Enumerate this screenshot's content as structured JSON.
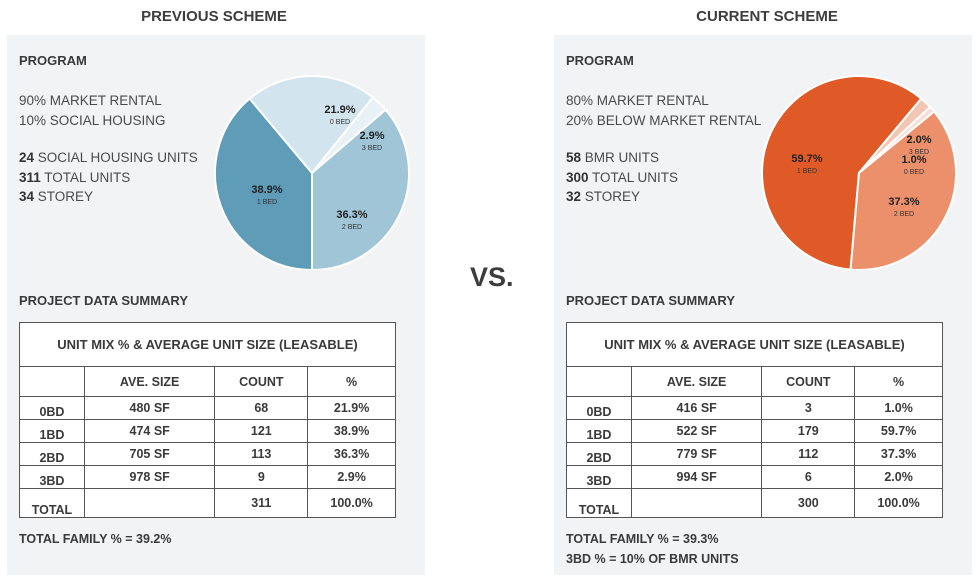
{
  "vs_label": "VS.",
  "previous": {
    "title": "PREVIOUS SCHEME",
    "program_heading": "PROGRAM",
    "program_lines": [
      "90% MARKET RENTAL",
      "10% SOCIAL HOUSING"
    ],
    "stats": [
      {
        "num": "24",
        "label": " SOCIAL HOUSING UNITS"
      },
      {
        "num": "311",
        "label": " TOTAL UNITS"
      },
      {
        "num": "34",
        "label": " STOREY"
      }
    ],
    "summary_heading": "PROJECT DATA SUMMARY",
    "table": {
      "caption": "UNIT MIX % & AVERAGE UNIT SIZE (LEASABLE)",
      "columns": [
        "",
        "AVE. SIZE",
        "COUNT",
        "%"
      ],
      "rows": [
        [
          "0BD",
          "480 SF",
          "68",
          "21.9%"
        ],
        [
          "1BD",
          "474 SF",
          "121",
          "38.9%"
        ],
        [
          "2BD",
          "705 SF",
          "113",
          "36.3%"
        ],
        [
          "3BD",
          "978 SF",
          "9",
          "2.9%"
        ],
        [
          "TOTAL",
          "",
          "311",
          "100.0%"
        ]
      ]
    },
    "footnotes": [
      "TOTAL FAMILY % = 39.2%"
    ]
  },
  "current": {
    "title": "CURRENT SCHEME",
    "program_heading": "PROGRAM",
    "program_lines": [
      "80% MARKET RENTAL",
      "20% BELOW MARKET RENTAL"
    ],
    "stats": [
      {
        "num": "58",
        "label": " BMR UNITS"
      },
      {
        "num": "300",
        "label": " TOTAL UNITS"
      },
      {
        "num": "32",
        "label": " STOREY"
      }
    ],
    "summary_heading": "PROJECT DATA SUMMARY",
    "table": {
      "caption": "UNIT MIX % & AVERAGE UNIT SIZE (LEASABLE)",
      "columns": [
        "",
        "AVE. SIZE",
        "COUNT",
        "%"
      ],
      "rows": [
        [
          "0BD",
          "416 SF",
          "3",
          "1.0%"
        ],
        [
          "1BD",
          "522 SF",
          "179",
          "59.7%"
        ],
        [
          "2BD",
          "779 SF",
          "112",
          "37.3%"
        ],
        [
          "3BD",
          "994 SF",
          "6",
          "2.0%"
        ],
        [
          "TOTAL",
          "",
          "300",
          "100.0%"
        ]
      ]
    },
    "footnotes": [
      "TOTAL FAMILY % = 39.3%",
      "3BD % = 10% OF BMR UNITS"
    ]
  },
  "chart_data": [
    {
      "type": "pie",
      "slices": [
        {
          "label": "1 BED",
          "value": 38.9,
          "text": "38.9%",
          "color": "#5e9cb8"
        },
        {
          "label": "0 BED",
          "value": 21.9,
          "text": "21.9%",
          "color": "#d2e4ed"
        },
        {
          "label": "3 BED",
          "value": 2.9,
          "text": "2.9%",
          "color": "#e8f1f5"
        },
        {
          "label": "2 BED",
          "value": 36.3,
          "text": "36.3%",
          "color": "#a0c5d7"
        }
      ]
    },
    {
      "type": "pie",
      "slices": [
        {
          "label": "1 BED",
          "value": 59.7,
          "text": "59.7%",
          "color": "#e05a27"
        },
        {
          "label": "3 BED",
          "value": 2.0,
          "text": "2.0%",
          "color": "#f3c6b4"
        },
        {
          "label": "0 BED",
          "value": 1.0,
          "text": "1.0%",
          "color": "#f7ddd3"
        },
        {
          "label": "2 BED",
          "value": 37.3,
          "text": "37.3%",
          "color": "#ec906c"
        }
      ]
    }
  ]
}
